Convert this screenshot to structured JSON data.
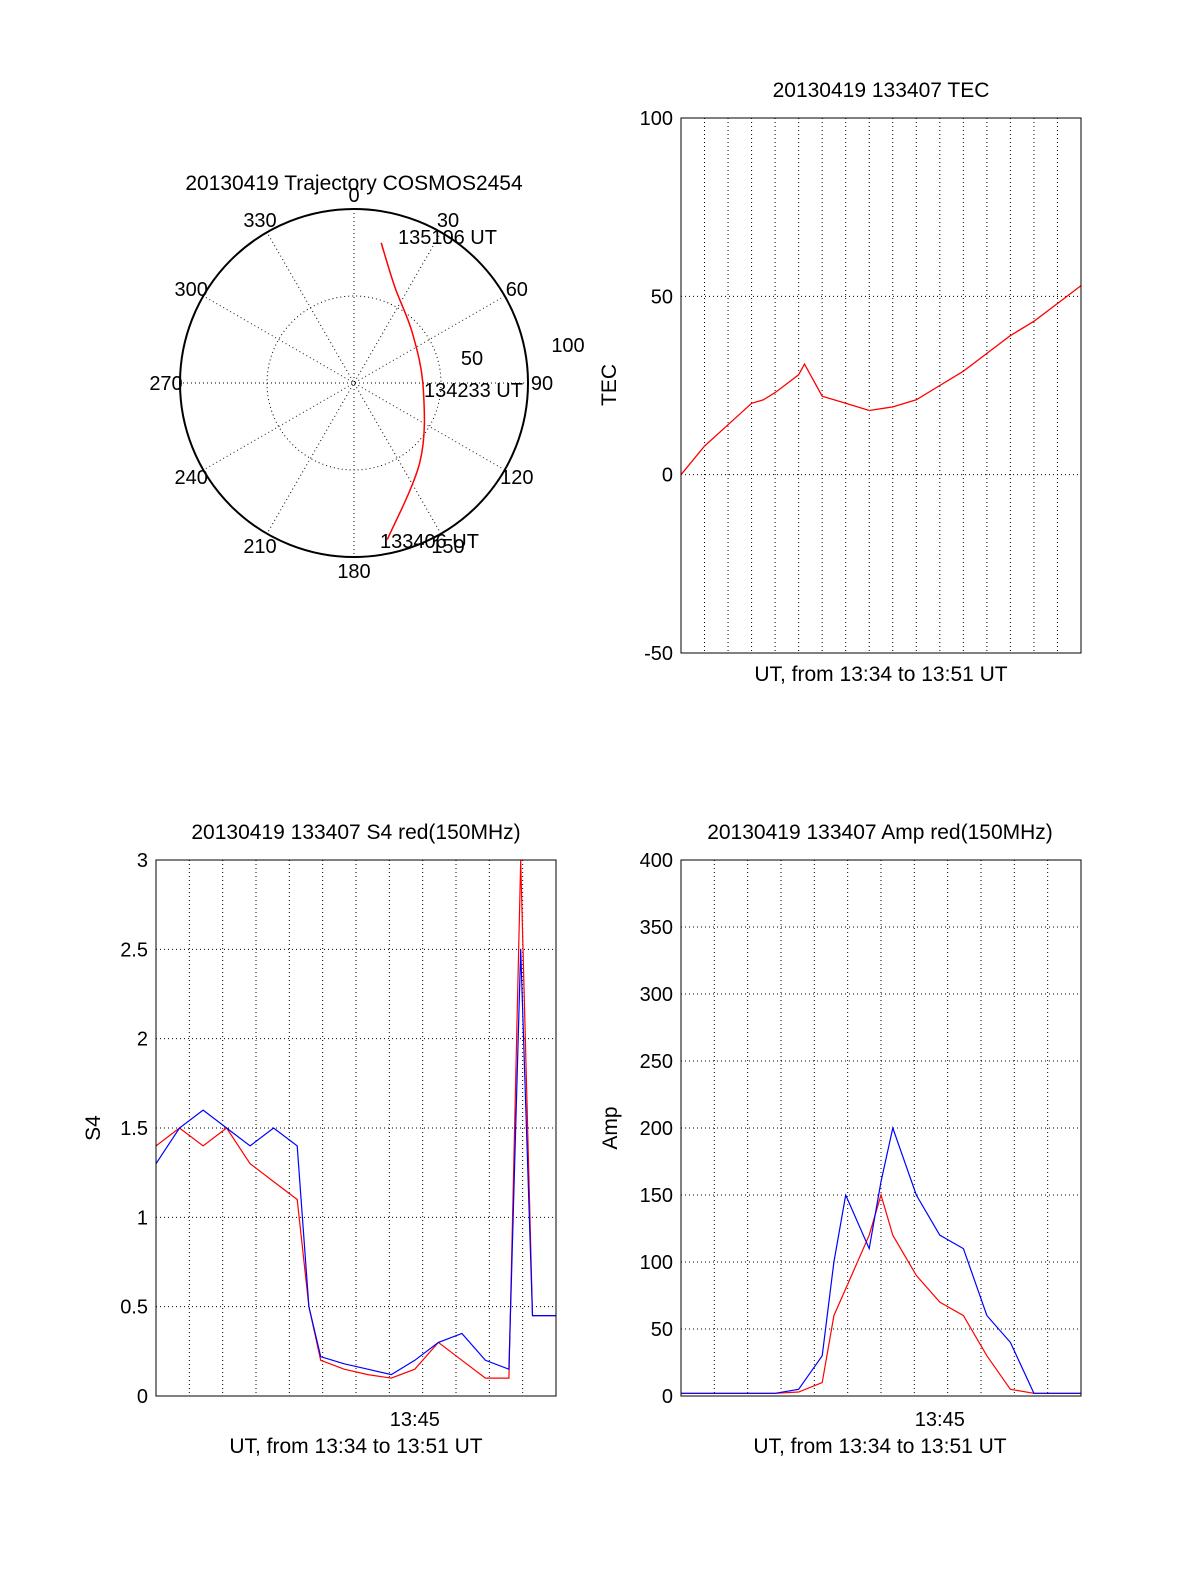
{
  "chart_data": [
    {
      "id": "polar",
      "type": "polar-trajectory",
      "title": "20130419 Trajectory COSMOS2454",
      "angle_labels": [
        "0",
        "30",
        "60",
        "90",
        "120",
        "150",
        "180",
        "210",
        "240",
        "270",
        "300",
        "330"
      ],
      "radial_labels": [
        "50",
        "100"
      ],
      "rlim": [
        0,
        100
      ],
      "grid": true,
      "series_color": "#ff0000",
      "trajectory": [
        {
          "az": 11,
          "r": 82
        },
        {
          "az": 23,
          "r": 60
        },
        {
          "az": 50,
          "r": 44
        },
        {
          "az": 95,
          "r": 40
        },
        {
          "az": 140,
          "r": 59
        },
        {
          "az": 168,
          "r": 92
        }
      ],
      "annotations": [
        {
          "text": "135106 UT",
          "at": "trajectory-end"
        },
        {
          "text": "134233 UT",
          "at": "trajectory-middle"
        },
        {
          "text": "133406 UT",
          "at": "trajectory-start"
        }
      ]
    },
    {
      "id": "tec",
      "type": "line",
      "title": "20130419 133407 TEC",
      "xlabel": "UT, from 13:34 to 13:51 UT",
      "ylabel": "TEC",
      "xlim": [
        "13:34",
        "13:51"
      ],
      "ylim": [
        -50,
        100
      ],
      "yticks": [
        "-50",
        "0",
        "50",
        "100"
      ],
      "xticks": [],
      "grid": true,
      "series": [
        {
          "color": "#ff0000",
          "x": [
            "13:34",
            "13:35",
            "13:36",
            "13:37",
            "13:37:30",
            "13:38",
            "13:39",
            "13:39:15",
            "13:39:45",
            "13:40",
            "13:41",
            "13:42",
            "13:43",
            "13:44",
            "13:45",
            "13:46",
            "13:47",
            "13:48",
            "13:49",
            "13:50",
            "13:51"
          ],
          "y": [
            0,
            8,
            14,
            20,
            21,
            23,
            28,
            31,
            25,
            22,
            20,
            18,
            19,
            21,
            25,
            29,
            34,
            39,
            43,
            48,
            53
          ]
        }
      ]
    },
    {
      "id": "s4",
      "type": "line",
      "title": "20130419 133407 S4 red(150MHz)",
      "xlabel": "UT, from 13:34 to 13:51 UT",
      "ylabel": "S4",
      "xlim": [
        "13:34",
        "13:51"
      ],
      "ylim": [
        0,
        3
      ],
      "yticks": [
        "0",
        "0.5",
        "1",
        "1.5",
        "2",
        "2.5",
        "3"
      ],
      "xticks": [
        "13:45"
      ],
      "grid": true,
      "series": [
        {
          "color": "#ff0000",
          "x": [
            "13:34",
            "13:35",
            "13:36",
            "13:37",
            "13:38",
            "13:39",
            "13:40",
            "13:40:30",
            "13:41",
            "13:42",
            "13:43",
            "13:44",
            "13:45",
            "13:46",
            "13:47",
            "13:48",
            "13:49",
            "13:49:30",
            "13:50",
            "13:51"
          ],
          "y": [
            1.4,
            1.5,
            1.4,
            1.5,
            1.3,
            1.2,
            1.1,
            0.5,
            0.2,
            0.15,
            0.12,
            0.1,
            0.15,
            0.3,
            0.2,
            0.1,
            0.1,
            3.0,
            0.45,
            0.45
          ]
        },
        {
          "color": "#0000ff",
          "x": [
            "13:34",
            "13:35",
            "13:36",
            "13:37",
            "13:38",
            "13:39",
            "13:40",
            "13:40:30",
            "13:41",
            "13:42",
            "13:43",
            "13:44",
            "13:45",
            "13:46",
            "13:47",
            "13:48",
            "13:49",
            "13:49:30",
            "13:50",
            "13:51"
          ],
          "y": [
            1.3,
            1.5,
            1.6,
            1.5,
            1.4,
            1.5,
            1.4,
            0.5,
            0.22,
            0.18,
            0.15,
            0.12,
            0.2,
            0.3,
            0.35,
            0.2,
            0.15,
            2.5,
            0.45,
            0.45
          ]
        }
      ]
    },
    {
      "id": "amp",
      "type": "line",
      "title": "20130419 133407 Amp red(150MHz)",
      "xlabel": "UT, from 13:34 to 13:51 UT",
      "ylabel": "Amp",
      "xlim": [
        "13:34",
        "13:51"
      ],
      "ylim": [
        0,
        400
      ],
      "yticks": [
        "0",
        "50",
        "100",
        "150",
        "200",
        "250",
        "300",
        "350",
        "400"
      ],
      "xticks": [
        "13:45"
      ],
      "grid": true,
      "series": [
        {
          "color": "#ff0000",
          "x": [
            "13:34",
            "13:38",
            "13:39",
            "13:40",
            "13:40:30",
            "13:41",
            "13:42",
            "13:42:30",
            "13:43",
            "13:44",
            "13:45",
            "13:46",
            "13:47",
            "13:48",
            "13:49",
            "13:51"
          ],
          "y": [
            2,
            2,
            3,
            10,
            60,
            80,
            120,
            150,
            120,
            90,
            70,
            60,
            30,
            5,
            2,
            2
          ]
        },
        {
          "color": "#0000ff",
          "x": [
            "13:34",
            "13:38",
            "13:39",
            "13:40",
            "13:40:30",
            "13:41",
            "13:42",
            "13:42:30",
            "13:43",
            "13:44",
            "13:45",
            "13:46",
            "13:47",
            "13:48",
            "13:49",
            "13:51"
          ],
          "y": [
            2,
            2,
            5,
            30,
            100,
            150,
            110,
            160,
            200,
            150,
            120,
            110,
            60,
            40,
            2,
            2
          ]
        }
      ]
    }
  ]
}
